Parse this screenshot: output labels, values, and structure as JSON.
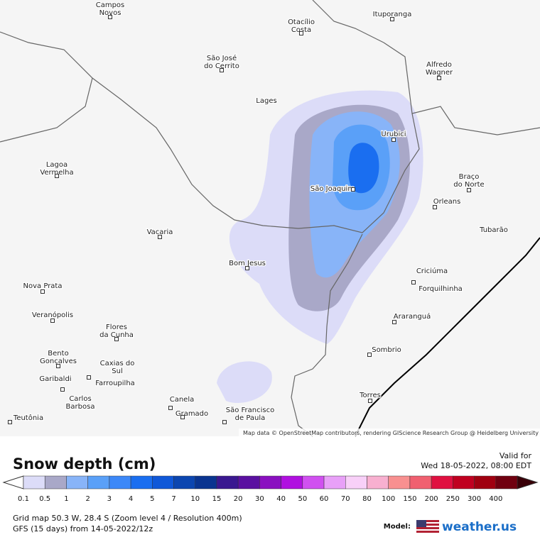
{
  "places": [
    {
      "lines": [
        "Campos",
        "Novos"
      ]
    },
    {
      "lines": [
        "Otacílio",
        "Costa"
      ]
    },
    {
      "lines": [
        "Ituporanga"
      ]
    },
    {
      "lines": [
        "São José",
        "do Cerrito"
      ]
    },
    {
      "lines": [
        "Alfredo",
        "Wagner"
      ]
    },
    {
      "lines": [
        "Lages"
      ]
    },
    {
      "lines": [
        "Urubici"
      ]
    },
    {
      "lines": [
        "Lagoa",
        "Vermelha"
      ]
    },
    {
      "lines": [
        "Braço",
        "do Norte"
      ]
    },
    {
      "lines": [
        "São Joaquim"
      ]
    },
    {
      "lines": [
        "Orleans"
      ]
    },
    {
      "lines": [
        "Tubarão"
      ]
    },
    {
      "lines": [
        "Vacaria"
      ]
    },
    {
      "lines": [
        "Bom Jesus"
      ]
    },
    {
      "lines": [
        "Criciúma"
      ]
    },
    {
      "lines": [
        "Forquilhinha"
      ]
    },
    {
      "lines": [
        "Nova Prata"
      ]
    },
    {
      "lines": [
        "Veranópolis"
      ]
    },
    {
      "lines": [
        "Araranguá"
      ]
    },
    {
      "lines": [
        "Flores",
        "da Cunha"
      ]
    },
    {
      "lines": [
        "Bento",
        "Gonçalves"
      ]
    },
    {
      "lines": [
        "Caxias do",
        "Sul"
      ]
    },
    {
      "lines": [
        "Sombrio"
      ]
    },
    {
      "lines": [
        "Garibaldi"
      ]
    },
    {
      "lines": [
        "Farroupilha"
      ]
    },
    {
      "lines": [
        "Carlos",
        "Barbosa"
      ]
    },
    {
      "lines": [
        "Torres"
      ]
    },
    {
      "lines": [
        "Canela"
      ]
    },
    {
      "lines": [
        "Gramado"
      ]
    },
    {
      "lines": [
        "São Francisco",
        "de Paula"
      ]
    },
    {
      "lines": [
        "Teutônia"
      ]
    }
  ],
  "attribution": "Map data © OpenStreetMap contributors, rendering GIScience Research Group @ Heidelberg University",
  "legend": {
    "title": "Snow depth (cm)",
    "valid_label": "Valid for",
    "valid_time": "Wed 18-05-2022, 08:00 EDT",
    "items": [
      {
        "label": "0.1",
        "color": "#dcdcf8"
      },
      {
        "label": "0.5",
        "color": "#a9a8c8"
      },
      {
        "label": "1",
        "color": "#88b4f8"
      },
      {
        "label": "2",
        "color": "#5aa0f8"
      },
      {
        "label": "3",
        "color": "#3c88f8"
      },
      {
        "label": "4",
        "color": "#1a6ef0"
      },
      {
        "label": "5",
        "color": "#1058d8"
      },
      {
        "label": "7",
        "color": "#0c46b0"
      },
      {
        "label": "10",
        "color": "#0a3490"
      },
      {
        "label": "15",
        "color": "#3a1890"
      },
      {
        "label": "20",
        "color": "#5a10a0"
      },
      {
        "label": "30",
        "color": "#8a10c0"
      },
      {
        "label": "40",
        "color": "#b010e0"
      },
      {
        "label": "50",
        "color": "#d050f0"
      },
      {
        "label": "60",
        "color": "#e8a0f8"
      },
      {
        "label": "70",
        "color": "#f8d0f8"
      },
      {
        "label": "80",
        "color": "#f8b0d0"
      },
      {
        "label": "100",
        "color": "#f89090"
      },
      {
        "label": "150",
        "color": "#f06070"
      },
      {
        "label": "200",
        "color": "#e01040"
      },
      {
        "label": "250",
        "color": "#c00020"
      },
      {
        "label": "300",
        "color": "#a00010"
      },
      {
        "label": "400",
        "color": "#700010"
      }
    ]
  },
  "footer": {
    "grid": "Grid map 50.3 W, 28.4 S (Zoom level 4 / Resolution 400m)",
    "model_run": "GFS (15 days) from 14-05-2022/12z",
    "model_label": "Model:",
    "brand": "weather.us"
  }
}
